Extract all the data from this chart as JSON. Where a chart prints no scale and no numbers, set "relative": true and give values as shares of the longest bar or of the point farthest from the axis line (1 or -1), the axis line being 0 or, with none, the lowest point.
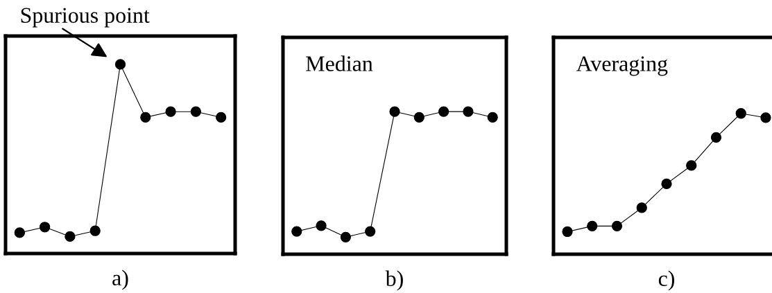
{
  "chart_data": [
    {
      "type": "line",
      "relative": true,
      "tick_labels": false,
      "marker": "circle",
      "line_style": "solid",
      "xlabel": "a)",
      "categories": [
        null,
        null,
        null,
        null,
        null,
        null,
        null,
        null,
        null
      ],
      "series": [
        {
          "color": "#000000",
          "values": [
            0.11,
            0.14,
            0.09,
            0.12,
            1,
            0.72,
            0.75,
            0.75,
            0.72
          ]
        }
      ],
      "annotations": [
        "Spurious point"
      ]
    },
    {
      "type": "line",
      "relative": true,
      "tick_labels": false,
      "marker": "circle",
      "line_style": "solid",
      "title": "Median",
      "xlabel": "b)",
      "categories": [
        null,
        null,
        null,
        null,
        null,
        null,
        null,
        null,
        null
      ],
      "series": [
        {
          "color": "#000000",
          "values": [
            0.16,
            0.2,
            0.12,
            0.16,
            1,
            0.96,
            1,
            1,
            0.96
          ]
        }
      ]
    },
    {
      "type": "line",
      "relative": true,
      "tick_labels": false,
      "marker": "circle",
      "line_style": "solid",
      "title": "Averaging",
      "xlabel": "c)",
      "categories": [
        null,
        null,
        null,
        null,
        null,
        null,
        null,
        null,
        null
      ],
      "series": [
        {
          "color": "#000000",
          "values": [
            0.16,
            0.2,
            0.2,
            0.33,
            0.5,
            0.63,
            0.83,
            1,
            0.97
          ]
        }
      ]
    }
  ]
}
